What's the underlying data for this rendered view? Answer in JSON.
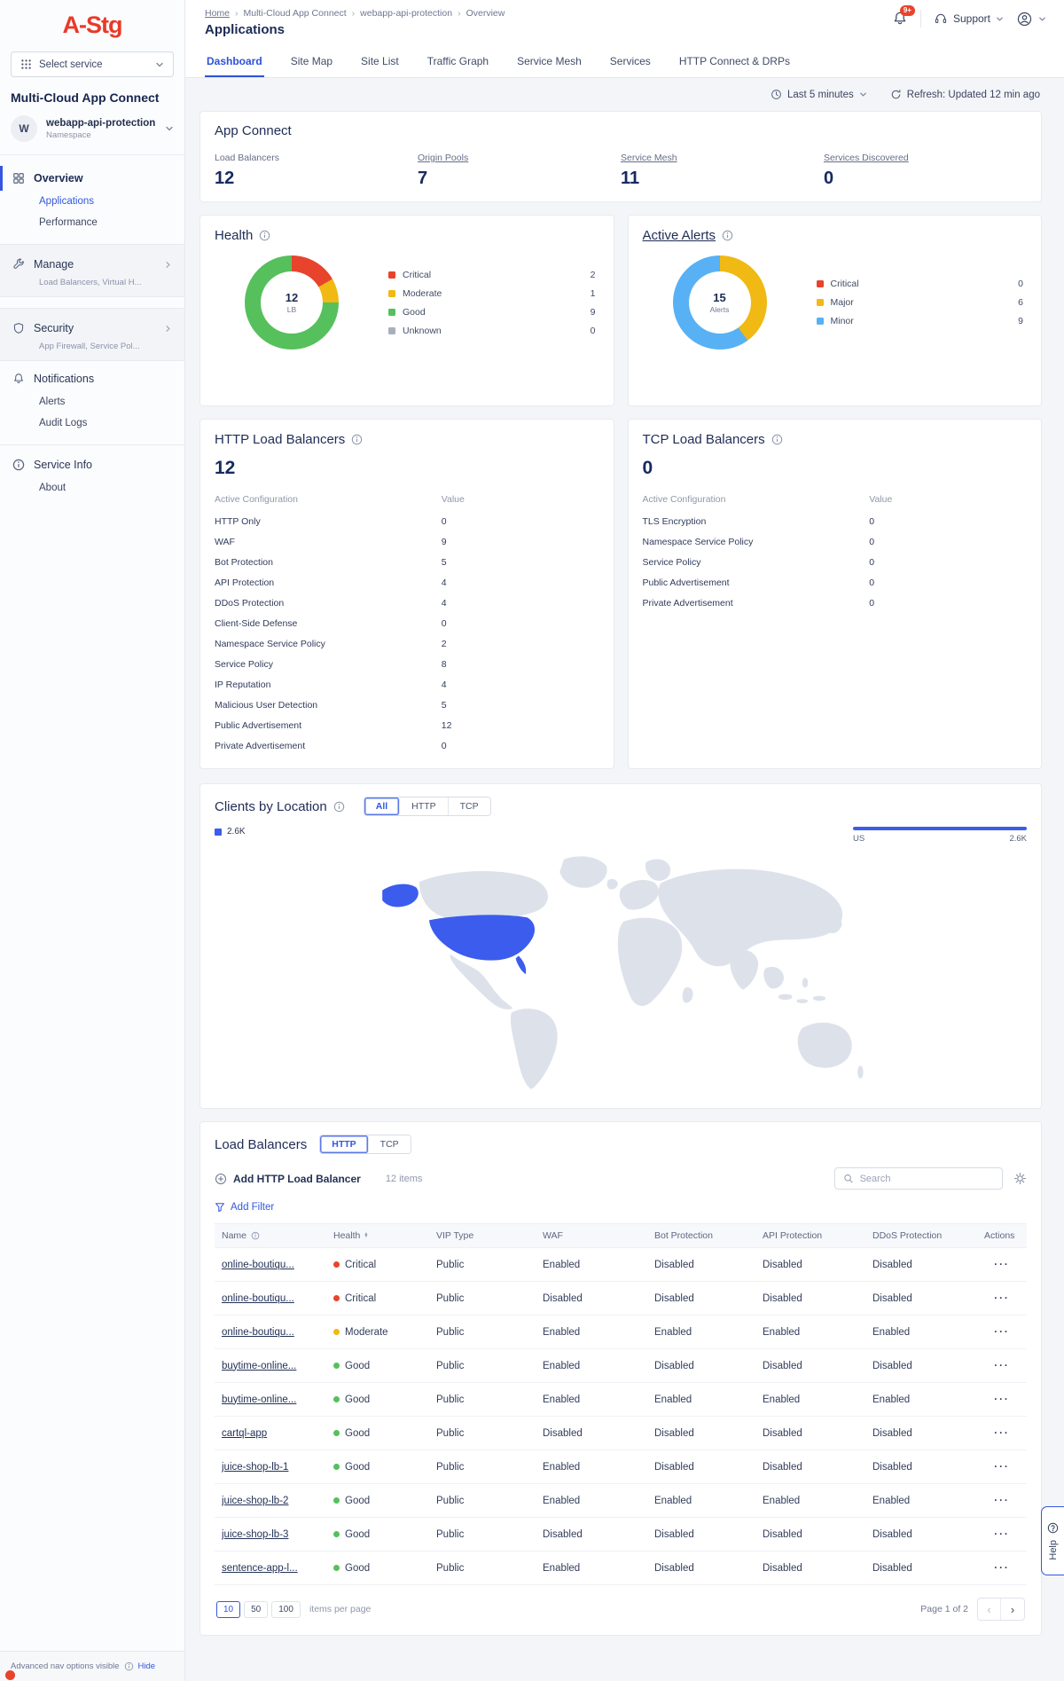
{
  "colors": {
    "accent": "#3357e0",
    "critical": "#e8432d",
    "moderate": "#f0b913",
    "good": "#56c05c",
    "unknown": "#a9afbd",
    "major": "#f0b913",
    "minor": "#57b1f4",
    "map_land": "#dde2ea",
    "map_highlight": "#3b5ced"
  },
  "status_colors": {
    "Critical": "critical",
    "Moderate": "moderate",
    "Good": "good"
  },
  "sidebar": {
    "logo": "A-Stg",
    "service_selector": "Select service",
    "product_title": "Multi-Cloud App Connect",
    "namespace": {
      "initial": "W",
      "name": "webapp-api-protection",
      "type": "Namespace"
    },
    "nav": [
      {
        "label": "Overview",
        "icon": "overview",
        "active": true,
        "children": [
          {
            "label": "Applications",
            "active": true
          },
          {
            "label": "Performance",
            "active": false
          }
        ]
      },
      {
        "label": "Manage",
        "icon": "wrench",
        "subtitle": "Load Balancers, Virtual H...",
        "boxed": true
      },
      {
        "label": "Security",
        "icon": "shield",
        "subtitle": "App Firewall, Service Pol...",
        "boxed": true
      },
      {
        "label": "Notifications",
        "icon": "bell",
        "children": [
          {
            "label": "Alerts",
            "active": false
          },
          {
            "label": "Audit Logs",
            "active": false
          }
        ]
      },
      {
        "label": "Service Info",
        "icon": "info",
        "divider": true,
        "children": [
          {
            "label": "About",
            "active": false
          }
        ]
      }
    ],
    "footer": {
      "text": "Advanced nav options visible",
      "action": "Hide"
    }
  },
  "header": {
    "breadcrumb": [
      "Home",
      "Multi-Cloud App Connect",
      "webapp-api-protection",
      "Overview"
    ],
    "page_title": "Applications",
    "notification_badge": "9+",
    "support_label": "Support"
  },
  "tabs": {
    "items": [
      "Dashboard",
      "Site Map",
      "Site List",
      "Traffic Graph",
      "Service Mesh",
      "Services",
      "HTTP Connect & DRPs"
    ],
    "active": "Dashboard"
  },
  "controls": {
    "time_range": "Last 5 minutes",
    "refresh": "Refresh: Updated 12 min ago"
  },
  "app_connect": {
    "title": "App Connect",
    "metrics": [
      {
        "label": "Load Balancers",
        "value": "12",
        "link": false
      },
      {
        "label": "Origin Pools",
        "value": "7",
        "link": true
      },
      {
        "label": "Service Mesh",
        "value": "11",
        "link": true
      },
      {
        "label": "Services Discovered",
        "value": "0",
        "link": true
      }
    ]
  },
  "health": {
    "title": "Health",
    "center_value": "12",
    "center_label": "LB",
    "total": 12,
    "legend": [
      {
        "label": "Critical",
        "value": 2,
        "color_key": "critical"
      },
      {
        "label": "Moderate",
        "value": 1,
        "color_key": "moderate"
      },
      {
        "label": "Good",
        "value": 9,
        "color_key": "good"
      },
      {
        "label": "Unknown",
        "value": 0,
        "color_key": "unknown"
      }
    ]
  },
  "active_alerts": {
    "title": "Active Alerts",
    "center_value": "15",
    "center_label": "Alerts",
    "total": 15,
    "legend": [
      {
        "label": "Critical",
        "value": 0,
        "color_key": "critical"
      },
      {
        "label": "Major",
        "value": 6,
        "color_key": "major"
      },
      {
        "label": "Minor",
        "value": 9,
        "color_key": "minor"
      }
    ]
  },
  "http_lb": {
    "title": "HTTP Load Balancers",
    "count": "12",
    "config_header": {
      "label": "Active Configuration",
      "value": "Value"
    },
    "rows": [
      {
        "label": "HTTP Only",
        "value": "0"
      },
      {
        "label": "WAF",
        "value": "9"
      },
      {
        "label": "Bot Protection",
        "value": "5"
      },
      {
        "label": "API Protection",
        "value": "4"
      },
      {
        "label": "DDoS Protection",
        "value": "4"
      },
      {
        "label": "Client-Side Defense",
        "value": "0"
      },
      {
        "label": "Namespace Service Policy",
        "value": "2"
      },
      {
        "label": "Service Policy",
        "value": "8"
      },
      {
        "label": "IP Reputation",
        "value": "4"
      },
      {
        "label": "Malicious User Detection",
        "value": "5"
      },
      {
        "label": "Public Advertisement",
        "value": "12"
      },
      {
        "label": "Private Advertisement",
        "value": "0"
      }
    ]
  },
  "tcp_lb": {
    "title": "TCP Load Balancers",
    "count": "0",
    "config_header": {
      "label": "Active Configuration",
      "value": "Value"
    },
    "rows": [
      {
        "label": "TLS Encryption",
        "value": "0"
      },
      {
        "label": "Namespace Service Policy",
        "value": "0"
      },
      {
        "label": "Service Policy",
        "value": "0"
      },
      {
        "label": "Public Advertisement",
        "value": "0"
      },
      {
        "label": "Private Advertisement",
        "value": "0"
      }
    ]
  },
  "clients": {
    "title": "Clients by Location",
    "toggles": [
      "All",
      "HTTP",
      "TCP"
    ],
    "active_toggle": "All",
    "legend_value": "2.6K",
    "bar": {
      "label": "US",
      "value": "2.6K"
    }
  },
  "load_balancers": {
    "title": "Load Balancers",
    "toggles": [
      "HTTP",
      "TCP"
    ],
    "active_toggle": "HTTP",
    "add_button": "Add HTTP Load Balancer",
    "items_label": "12 items",
    "search_placeholder": "Search",
    "add_filter": "Add Filter",
    "columns": [
      {
        "label": "Name",
        "info": true
      },
      {
        "label": "Health",
        "sortable": true
      },
      {
        "label": "VIP Type"
      },
      {
        "label": "WAF"
      },
      {
        "label": "Bot Protection"
      },
      {
        "label": "API Protection"
      },
      {
        "label": "DDoS Protection"
      },
      {
        "label": "Actions"
      }
    ],
    "rows": [
      {
        "name": "online-boutiqu...",
        "health": "Critical",
        "vip_type": "Public",
        "waf": "Enabled",
        "bot": "Disabled",
        "api": "Disabled",
        "ddos": "Disabled"
      },
      {
        "name": "online-boutiqu...",
        "health": "Critical",
        "vip_type": "Public",
        "waf": "Disabled",
        "bot": "Disabled",
        "api": "Disabled",
        "ddos": "Disabled"
      },
      {
        "name": "online-boutiqu...",
        "health": "Moderate",
        "vip_type": "Public",
        "waf": "Enabled",
        "bot": "Enabled",
        "api": "Enabled",
        "ddos": "Enabled"
      },
      {
        "name": "buytime-online...",
        "health": "Good",
        "vip_type": "Public",
        "waf": "Enabled",
        "bot": "Disabled",
        "api": "Disabled",
        "ddos": "Disabled"
      },
      {
        "name": "buytime-online...",
        "health": "Good",
        "vip_type": "Public",
        "waf": "Enabled",
        "bot": "Enabled",
        "api": "Enabled",
        "ddos": "Enabled"
      },
      {
        "name": "cartql-app",
        "health": "Good",
        "vip_type": "Public",
        "waf": "Disabled",
        "bot": "Disabled",
        "api": "Disabled",
        "ddos": "Disabled"
      },
      {
        "name": "juice-shop-lb-1",
        "health": "Good",
        "vip_type": "Public",
        "waf": "Enabled",
        "bot": "Disabled",
        "api": "Disabled",
        "ddos": "Disabled"
      },
      {
        "name": "juice-shop-lb-2",
        "health": "Good",
        "vip_type": "Public",
        "waf": "Enabled",
        "bot": "Enabled",
        "api": "Enabled",
        "ddos": "Enabled"
      },
      {
        "name": "juice-shop-lb-3",
        "health": "Good",
        "vip_type": "Public",
        "waf": "Disabled",
        "bot": "Disabled",
        "api": "Disabled",
        "ddos": "Disabled"
      },
      {
        "name": "sentence-app-l...",
        "health": "Good",
        "vip_type": "Public",
        "waf": "Enabled",
        "bot": "Disabled",
        "api": "Disabled",
        "ddos": "Disabled"
      }
    ],
    "pagination": {
      "sizes": [
        "10",
        "50",
        "100"
      ],
      "active_size": "10",
      "per_page_label": "items per page",
      "page_label": "Page 1 of 2"
    }
  },
  "help_label": "Help"
}
